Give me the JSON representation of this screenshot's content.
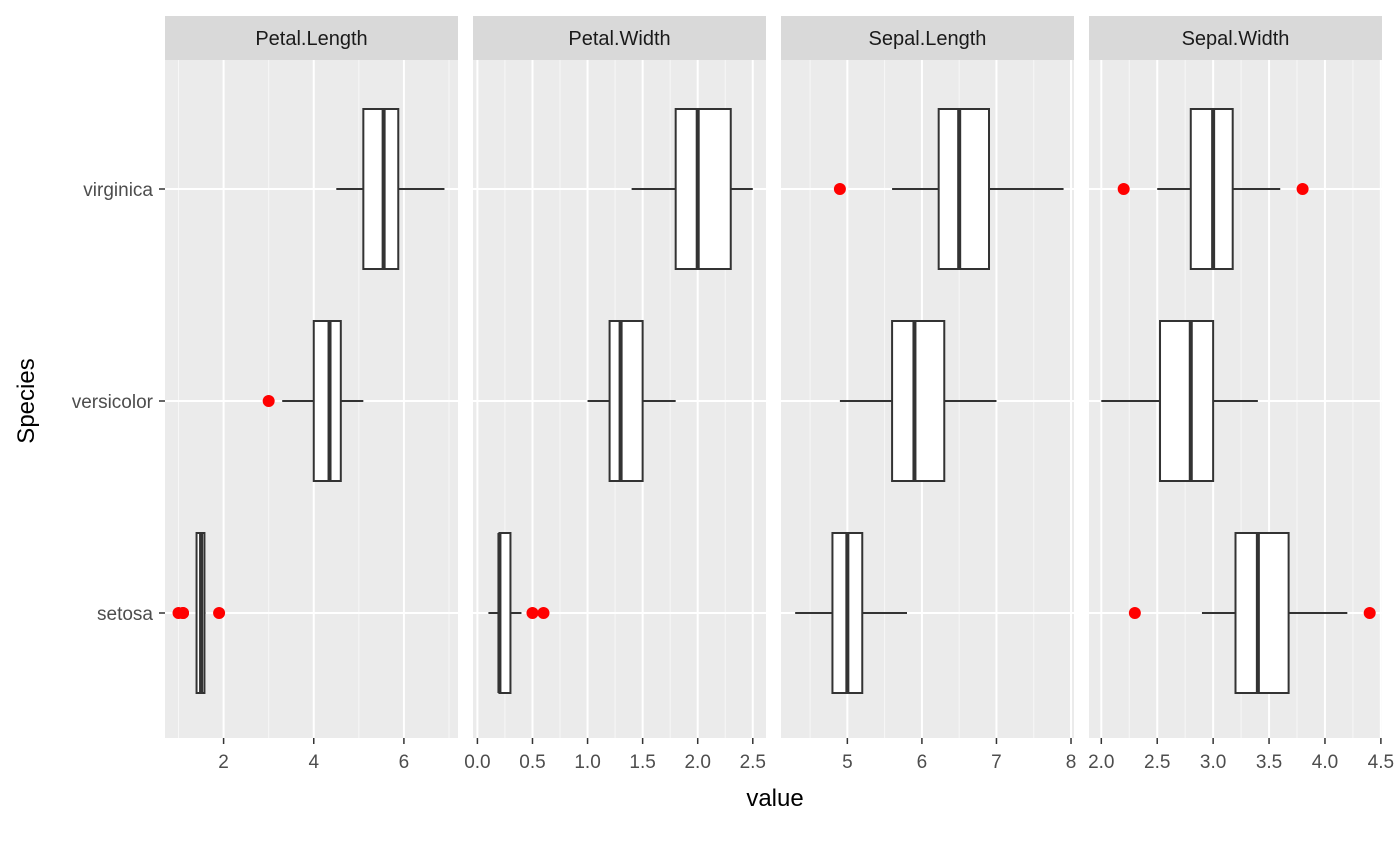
{
  "chart_data": {
    "type": "boxplot",
    "layout": "faceted horizontal boxplots, one panel per measurement, free x scales",
    "xlabel": "value",
    "ylabel": "Species",
    "categories": [
      "setosa",
      "versicolor",
      "virginica"
    ],
    "grid": true,
    "legend": "none",
    "outlier_color": "#ff0000",
    "panels": [
      {
        "name": "Petal.Length",
        "xlim": [
          0.7,
          7.2
        ],
        "ticks": [
          2,
          4,
          6
        ],
        "tick_labels": [
          "2",
          "4",
          "6"
        ],
        "boxes": [
          {
            "category": "setosa",
            "whisker_low": 1.4,
            "q1": 1.4,
            "median": 1.5,
            "q3": 1.575,
            "whisker_high": 1.6,
            "outliers": [
              1.0,
              1.1,
              1.1,
              1.9
            ]
          },
          {
            "category": "versicolor",
            "whisker_low": 3.3,
            "q1": 4.0,
            "median": 4.35,
            "q3": 4.6,
            "whisker_high": 5.1,
            "outliers": [
              3.0
            ]
          },
          {
            "category": "virginica",
            "whisker_low": 4.5,
            "q1": 5.1,
            "median": 5.55,
            "q3": 5.875,
            "whisker_high": 6.9,
            "outliers": []
          }
        ]
      },
      {
        "name": "Petal.Width",
        "xlim": [
          -0.04,
          2.62
        ],
        "ticks": [
          0.0,
          0.5,
          1.0,
          1.5,
          2.0,
          2.5
        ],
        "tick_labels": [
          "0.0",
          "0.5",
          "1.0",
          "1.5",
          "2.0",
          "2.5"
        ],
        "boxes": [
          {
            "category": "setosa",
            "whisker_low": 0.1,
            "q1": 0.2,
            "median": 0.2,
            "q3": 0.3,
            "whisker_high": 0.4,
            "outliers": [
              0.5,
              0.6
            ]
          },
          {
            "category": "versicolor",
            "whisker_low": 1.0,
            "q1": 1.2,
            "median": 1.3,
            "q3": 1.5,
            "whisker_high": 1.8,
            "outliers": []
          },
          {
            "category": "virginica",
            "whisker_low": 1.4,
            "q1": 1.8,
            "median": 2.0,
            "q3": 2.3,
            "whisker_high": 2.5,
            "outliers": []
          }
        ]
      },
      {
        "name": "Sepal.Length",
        "xlim": [
          4.11,
          8.04
        ],
        "ticks": [
          5,
          6,
          7,
          8
        ],
        "tick_labels": [
          "5",
          "6",
          "7",
          "8"
        ],
        "boxes": [
          {
            "category": "setosa",
            "whisker_low": 4.3,
            "q1": 4.8,
            "median": 5.0,
            "q3": 5.2,
            "whisker_high": 5.8,
            "outliers": []
          },
          {
            "category": "versicolor",
            "whisker_low": 4.9,
            "q1": 5.6,
            "median": 5.9,
            "q3": 6.3,
            "whisker_high": 7.0,
            "outliers": []
          },
          {
            "category": "virginica",
            "whisker_low": 5.6,
            "q1": 6.225,
            "median": 6.5,
            "q3": 6.9,
            "whisker_high": 7.9,
            "outliers": [
              4.9
            ]
          }
        ]
      },
      {
        "name": "Sepal.Width",
        "xlim": [
          1.89,
          4.51
        ],
        "ticks": [
          2.0,
          2.5,
          3.0,
          3.5,
          4.0,
          4.5
        ],
        "tick_labels": [
          "2.0",
          "2.5",
          "3.0",
          "3.5",
          "4.0",
          "4.5"
        ],
        "boxes": [
          {
            "category": "setosa",
            "whisker_low": 2.9,
            "q1": 3.2,
            "median": 3.4,
            "q3": 3.675,
            "whisker_high": 4.2,
            "outliers": [
              2.3,
              4.4
            ]
          },
          {
            "category": "versicolor",
            "whisker_low": 2.0,
            "q1": 2.525,
            "median": 2.8,
            "q3": 3.0,
            "whisker_high": 3.4,
            "outliers": []
          },
          {
            "category": "virginica",
            "whisker_low": 2.5,
            "q1": 2.8,
            "median": 3.0,
            "q3": 3.175,
            "whisker_high": 3.6,
            "outliers": [
              2.2,
              3.8
            ]
          }
        ]
      }
    ]
  }
}
